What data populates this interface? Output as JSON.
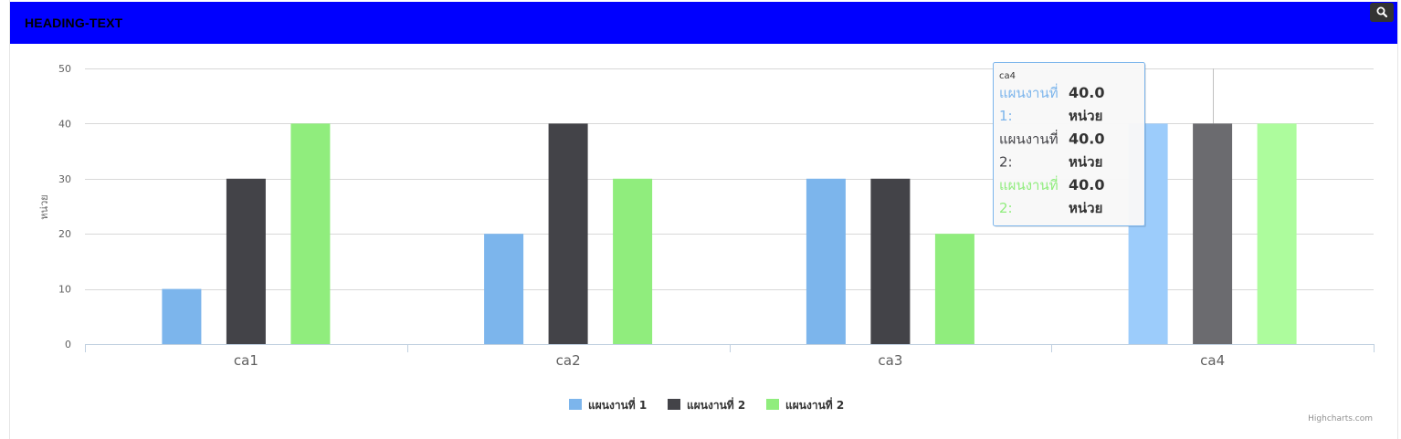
{
  "header": {
    "title": "HEADING-TEXT",
    "search_icon": "search-icon"
  },
  "chart_data": {
    "type": "bar",
    "categories": [
      "ca1",
      "ca2",
      "ca3",
      "ca4"
    ],
    "series": [
      {
        "name": "แผนงานที่ 1",
        "color": "#7cb5ec",
        "values": [
          10,
          20,
          30,
          40
        ]
      },
      {
        "name": "แผนงานที่ 2",
        "color": "#434348",
        "values": [
          30,
          40,
          30,
          40
        ]
      },
      {
        "name": "แผนงานที่ 2",
        "color": "#90ed7d",
        "values": [
          40,
          30,
          20,
          40
        ]
      }
    ],
    "ylabel": "หน่วย",
    "ylim": [
      0,
      50
    ],
    "yticks": [
      0,
      10,
      20,
      30,
      40,
      50
    ],
    "grid": true,
    "legend": "bottom-center",
    "credits": "Highcharts.com",
    "tooltip": {
      "category": "ca4",
      "rows": [
        {
          "name_line1": "แผนงานที่",
          "name_line2": "1:",
          "value_line1": "40.0",
          "value_line2": "หน่วย",
          "color": "#7cb5ec"
        },
        {
          "name_line1": "แผนงานที่",
          "name_line2": "2:",
          "value_line1": "40.0",
          "value_line2": "หน่วย",
          "color": "#434348"
        },
        {
          "name_line1": "แผนงานที่",
          "name_line2": "2:",
          "value_line1": "40.0",
          "value_line2": "หน่วย",
          "color": "#90ed7d"
        }
      ]
    }
  }
}
